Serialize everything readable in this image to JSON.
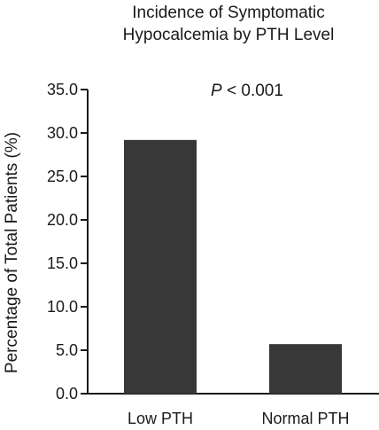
{
  "chart_data": {
    "type": "bar",
    "title_lines": [
      "Incidence of Symptomatic",
      "Hypocalcemia by PTH Level"
    ],
    "ylabel": "Percentage of Total Patients (%)",
    "xlabel": "",
    "categories": [
      "Low PTH",
      "Normal PTH"
    ],
    "values": [
      29.2,
      5.7
    ],
    "ylim": [
      0,
      35
    ],
    "yticks": [
      "0.0",
      "5.0",
      "10.0",
      "15.0",
      "20.0",
      "25.0",
      "30.0",
      "35.0"
    ],
    "annotation": {
      "italic": "P",
      "rest": " < 0.001"
    },
    "bar_color": "#383838",
    "axis_color": "#1a1a1a",
    "grid": false,
    "legend": "none"
  }
}
